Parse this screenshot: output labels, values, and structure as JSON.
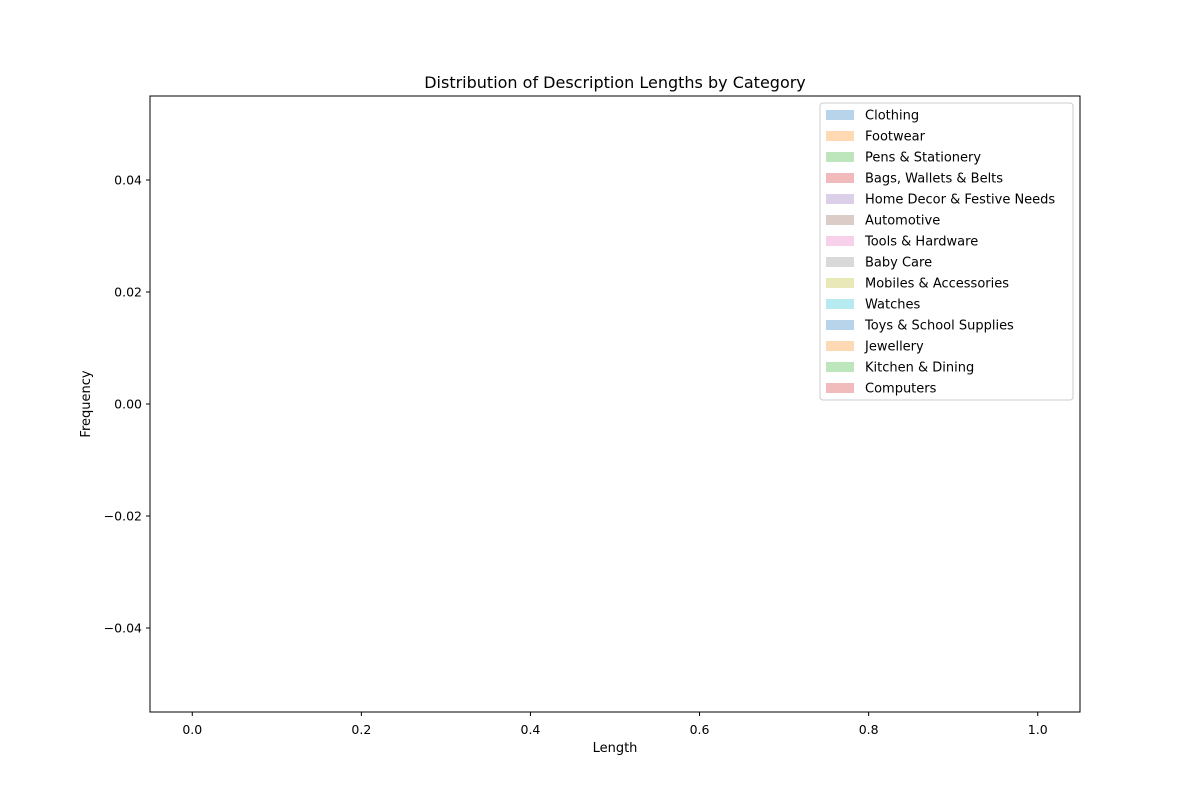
{
  "chart_data": {
    "type": "histogram",
    "title": "Distribution of Description Lengths by Category",
    "xlabel": "Length",
    "ylabel": "Frequency",
    "xlim": [
      -0.05,
      1.05
    ],
    "ylim": [
      -0.055,
      0.055
    ],
    "xticks": [
      0.0,
      0.2,
      0.4,
      0.6,
      0.8,
      1.0
    ],
    "xtick_labels": [
      "0.0",
      "0.2",
      "0.4",
      "0.6",
      "0.8",
      "1.0"
    ],
    "yticks": [
      -0.04,
      -0.02,
      0.0,
      0.02,
      0.04
    ],
    "ytick_labels": [
      "−0.04",
      "−0.02",
      "0.00",
      "0.02",
      "0.04"
    ],
    "grid": false,
    "legend_position": "top-right",
    "series": [
      {
        "name": "Clothing",
        "color": "#b7d4ea",
        "values": []
      },
      {
        "name": "Footwear",
        "color": "#ffd8b4",
        "values": []
      },
      {
        "name": "Pens & Stationery",
        "color": "#bde6bd",
        "values": []
      },
      {
        "name": "Bags, Wallets & Belts",
        "color": "#f2bbbb",
        "values": []
      },
      {
        "name": "Home Decor & Festive Needs",
        "color": "#dcd0e8",
        "values": []
      },
      {
        "name": "Automotive",
        "color": "#dcccc8",
        "values": []
      },
      {
        "name": "Tools & Hardware",
        "color": "#f7d0ea",
        "values": []
      },
      {
        "name": "Baby Care",
        "color": "#d9d9d9",
        "values": []
      },
      {
        "name": "Mobiles & Accessories",
        "color": "#e8e8b8",
        "values": []
      },
      {
        "name": "Watches",
        "color": "#b6ebef",
        "values": []
      },
      {
        "name": "Toys & School Supplies",
        "color": "#b7d4ea",
        "values": []
      },
      {
        "name": "Jewellery",
        "color": "#ffd8b4",
        "values": []
      },
      {
        "name": "Kitchen & Dining",
        "color": "#bde6bd",
        "values": []
      },
      {
        "name": "Computers",
        "color": "#f2bbbb",
        "values": []
      }
    ]
  }
}
